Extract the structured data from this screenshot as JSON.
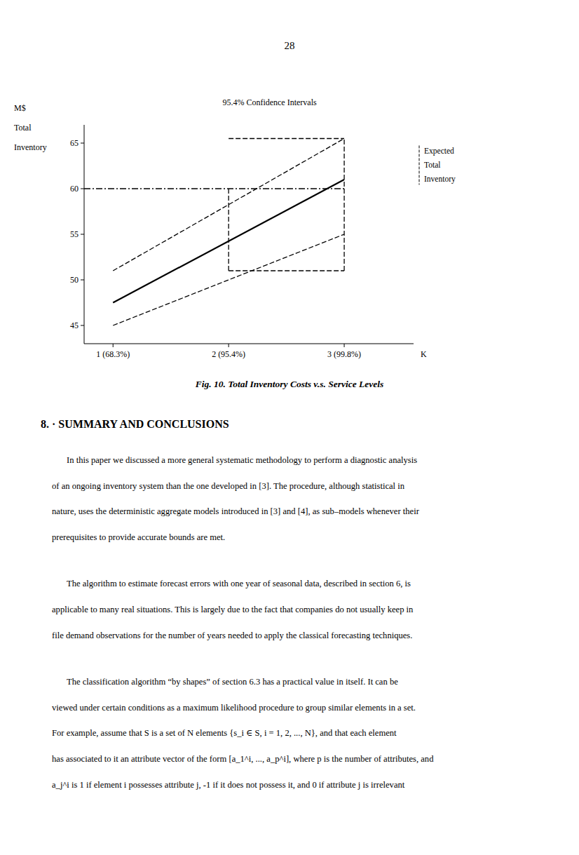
{
  "page_number": "28",
  "caption": "Fig. 10.  Total Inventory Costs v.s.  Service Levels",
  "section_title": "8. · SUMMARY AND CONCLUSIONS",
  "paragraphs": [
    [
      "In this paper we discussed a more general systematic methodology to perform a diagnostic analysis",
      "of an ongoing inventory system than the one developed in [3].  The procedure, although statistical in",
      "nature, uses the deterministic aggregate models introduced in [3] and [4], as sub–models whenever their",
      "prerequisites to provide accurate bounds are met."
    ],
    [
      "The algorithm to estimate forecast errors with one year of seasonal data, described in section 6, is",
      "applicable to many real situations. This is largely due to the fact that companies do not usually keep in",
      "file demand observations for the number of years needed to apply the classical forecasting techniques."
    ],
    [
      "The classification algorithm “by shapes” of section 6.3 has a practical value in itself.  It can be",
      "viewed under certain conditions as a maximum likelihood procedure to group similar elements in a set.",
      "For example, assume that S is a set of N elements {s_i ∈ S, i = 1, 2, ..., N}, and that each element",
      "has associated to it an attribute vector of the form [a_1^i, ..., a_p^i], where p is the number of attributes, and",
      "a_j^i is 1 if element i possesses attribute j, -1 if it does not possess it, and 0 if attribute j is irrelevant"
    ]
  ],
  "chart_data": {
    "type": "line",
    "color": "#000000",
    "grid": false,
    "ylabel": [
      "M$",
      "Total",
      "Inventory"
    ],
    "xlabel": "K",
    "annotations": [
      {
        "lines": [
          "95.4% Confidence Intervals"
        ]
      },
      {
        "lines": [
          "Expected",
          "Total",
          "Inventory"
        ]
      }
    ],
    "xlim": [
      0.75,
      3.6
    ],
    "ylim": [
      43,
      67
    ],
    "xticks": [
      {
        "value": 1,
        "label": "1 (68.3%)"
      },
      {
        "value": 2,
        "label": "2 (95.4%)"
      },
      {
        "value": 3,
        "label": "3 (99.8%)"
      }
    ],
    "yticks": [
      45,
      50,
      55,
      60,
      65
    ],
    "series": [
      {
        "x": [
          1,
          3
        ],
        "values": [
          47.5,
          61.0
        ],
        "line_style": "solid"
      },
      {
        "x": [
          1,
          3
        ],
        "values": [
          51.0,
          65.5
        ],
        "line_style": "dashed"
      },
      {
        "x": [
          1,
          3
        ],
        "values": [
          45.0,
          55.0
        ],
        "line_style": "dashed"
      },
      {
        "x": [
          0.75,
          3.0
        ],
        "values": [
          60.0,
          60.0
        ],
        "line_style": "dashdot"
      },
      {
        "x": [
          2.0,
          2.0
        ],
        "values": [
          51.0,
          60.0
        ],
        "line_style": "dashed"
      },
      {
        "x": [
          3.0,
          3.0
        ],
        "values": [
          51.0,
          65.5
        ],
        "line_style": "dashed"
      },
      {
        "x": [
          2.0,
          3.0
        ],
        "values": [
          65.5,
          65.5
        ],
        "line_style": "dashed"
      },
      {
        "x": [
          2.0,
          3.0
        ],
        "values": [
          51.0,
          51.0
        ],
        "line_style": "dashed"
      }
    ]
  }
}
